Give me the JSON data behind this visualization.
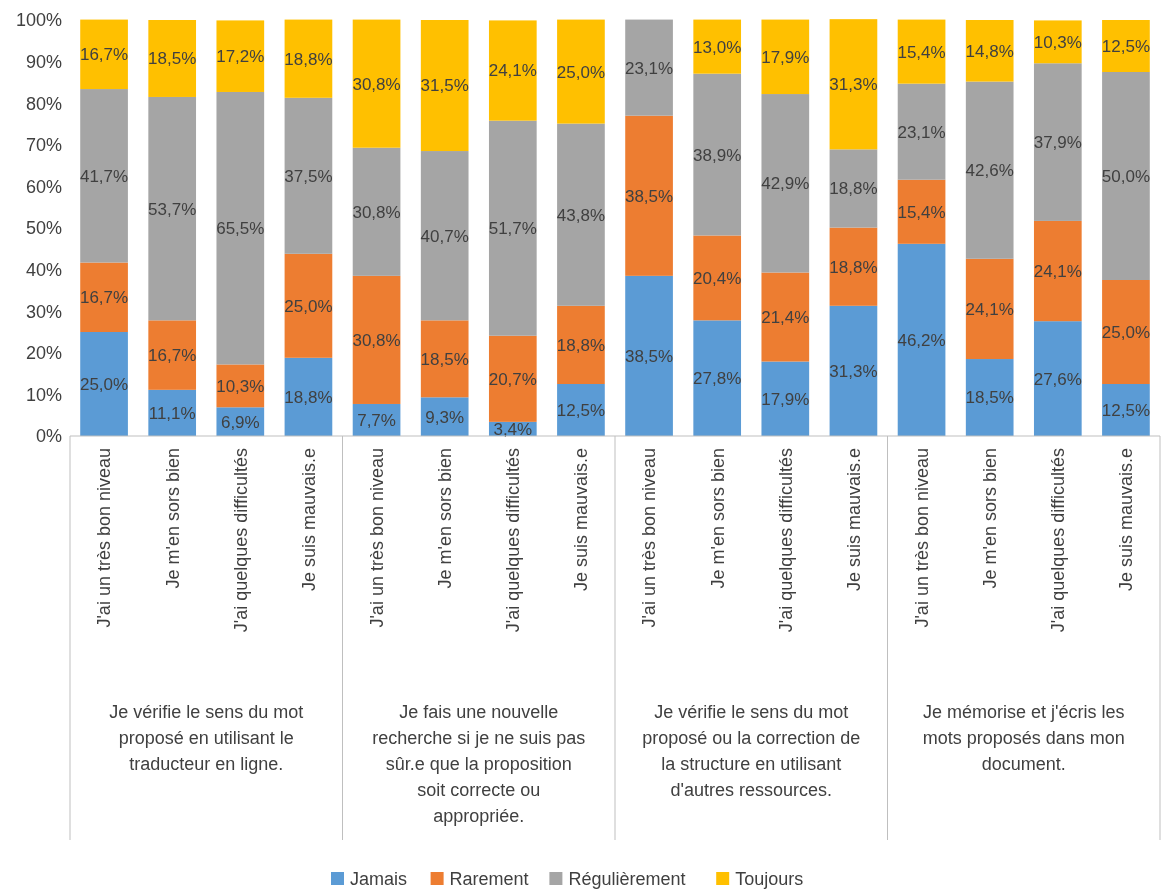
{
  "chart_data": {
    "type": "bar",
    "stacked": true,
    "categories": [
      "J'ai un très bon niveau",
      "Je m'en sors bien",
      "J'ai quelques difficultés",
      "Je suis mauvais.e",
      "J'ai un très bon niveau",
      "Je m'en sors bien",
      "J'ai quelques difficultés",
      "Je suis mauvais.e",
      "J'ai un très bon niveau",
      "Je m'en sors bien",
      "J'ai quelques difficultés",
      "Je suis mauvais.e",
      "J'ai un très bon niveau",
      "Je m'en sors bien",
      "J'ai quelques difficultés",
      "Je suis mauvais.e"
    ],
    "annotations": [
      "Je vérifie le sens du mot proposé en utilisant le traducteur en ligne.",
      "Je fais une nouvelle recherche si je ne suis pas sûr.e que la proposition soit correcte ou appropriée.",
      "Je vérifie le sens du mot proposé ou la correction de la structure en utilisant d'autres ressources.",
      "Je mémorise et j'écris les mots proposés dans mon document."
    ],
    "series": [
      {
        "name": "Jamais",
        "color": "#5b9bd5",
        "values": [
          25.0,
          11.1,
          6.9,
          18.8,
          7.7,
          9.3,
          3.4,
          12.5,
          38.5,
          27.8,
          17.9,
          31.3,
          46.2,
          18.5,
          27.6,
          12.5
        ],
        "value_labels": [
          "25,0%",
          "11,1%",
          "6,9%",
          "18,8%",
          "7,7%",
          "9,3%",
          "3,4%",
          "12,5%",
          "38,5%",
          "27,8%",
          "17,9%",
          "31,3%",
          "46,2%",
          "18,5%",
          "27,6%",
          "12,5%"
        ]
      },
      {
        "name": "Rarement",
        "color": "#ed7d31",
        "values": [
          16.7,
          16.7,
          10.3,
          25.0,
          30.8,
          18.5,
          20.7,
          18.8,
          38.5,
          20.4,
          21.4,
          18.8,
          15.4,
          24.1,
          24.1,
          25.0
        ],
        "value_labels": [
          "16,7%",
          "16,7%",
          "10,3%",
          "25,0%",
          "30,8%",
          "18,5%",
          "20,7%",
          "18,8%",
          "38,5%",
          "20,4%",
          "21,4%",
          "18,8%",
          "15,4%",
          "24,1%",
          "24,1%",
          "25,0%"
        ]
      },
      {
        "name": "Régulièrement",
        "color": "#a5a5a5",
        "values": [
          41.7,
          53.7,
          65.5,
          37.5,
          30.8,
          40.7,
          51.7,
          43.8,
          23.1,
          38.9,
          42.9,
          18.8,
          23.1,
          42.6,
          37.9,
          50.0
        ],
        "value_labels": [
          "41,7%",
          "53,7%",
          "65,5%",
          "37,5%",
          "30,8%",
          "40,7%",
          "51,7%",
          "43,8%",
          "23,1%",
          "38,9%",
          "42,9%",
          "18,8%",
          "23,1%",
          "42,6%",
          "37,9%",
          "50,0%"
        ]
      },
      {
        "name": "Toujours",
        "color": "#ffc000",
        "values": [
          16.7,
          18.5,
          17.2,
          18.8,
          30.8,
          31.5,
          24.1,
          25.0,
          0,
          13.0,
          17.9,
          31.3,
          15.4,
          14.8,
          10.3,
          12.5
        ],
        "value_labels": [
          "16,7%",
          "18,5%",
          "17,2%",
          "18,8%",
          "30,8%",
          "31,5%",
          "24,1%",
          "25,0%",
          null,
          "13,0%",
          "17,9%",
          "31,3%",
          "15,4%",
          "14,8%",
          "10,3%",
          "12,5%"
        ]
      }
    ],
    "ylim": [
      0,
      100
    ],
    "yticks": [
      {
        "value": 0,
        "label": "0%"
      },
      {
        "value": 10,
        "label": "10%"
      },
      {
        "value": 20,
        "label": "20%"
      },
      {
        "value": 30,
        "label": "30%"
      },
      {
        "value": 40,
        "label": "40%"
      },
      {
        "value": 50,
        "label": "50%"
      },
      {
        "value": 60,
        "label": "60%"
      },
      {
        "value": 70,
        "label": "70%"
      },
      {
        "value": 80,
        "label": "80%"
      },
      {
        "value": 90,
        "label": "90%"
      },
      {
        "value": 100,
        "label": "100%"
      }
    ],
    "grid": false,
    "legend": "bottom"
  }
}
